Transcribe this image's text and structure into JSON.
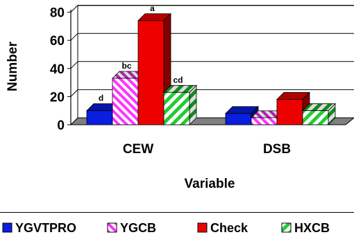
{
  "chart_data": {
    "type": "bar",
    "title": "",
    "xlabel": "Variable",
    "ylabel": "Number",
    "categories": [
      "CEW",
      "DSB"
    ],
    "ylim": [
      0,
      80
    ],
    "yticks": [
      "0",
      "20",
      "40",
      "60",
      "80"
    ],
    "grid": true,
    "legend_position": "bottom",
    "series": [
      {
        "name": "YGVTPRO",
        "values": [
          10,
          8
        ],
        "color": "#0a1ee0",
        "pattern": "solid"
      },
      {
        "name": "YGCB",
        "values": [
          33,
          5
        ],
        "color": "#ff33ff",
        "pattern": "diagonal-stripes"
      },
      {
        "name": "Check",
        "values": [
          74,
          18
        ],
        "color": "#ee0000",
        "pattern": "solid"
      },
      {
        "name": "HXCB",
        "values": [
          23,
          10
        ],
        "color": "#22cc33",
        "pattern": "diagonal-stripes"
      }
    ],
    "annotations": [
      {
        "category": "CEW",
        "series": "YGVTPRO",
        "text": "d"
      },
      {
        "category": "CEW",
        "series": "YGCB",
        "text": "bc"
      },
      {
        "category": "CEW",
        "series": "Check",
        "text": "a"
      },
      {
        "category": "CEW",
        "series": "HXCB",
        "text": "cd"
      }
    ]
  }
}
